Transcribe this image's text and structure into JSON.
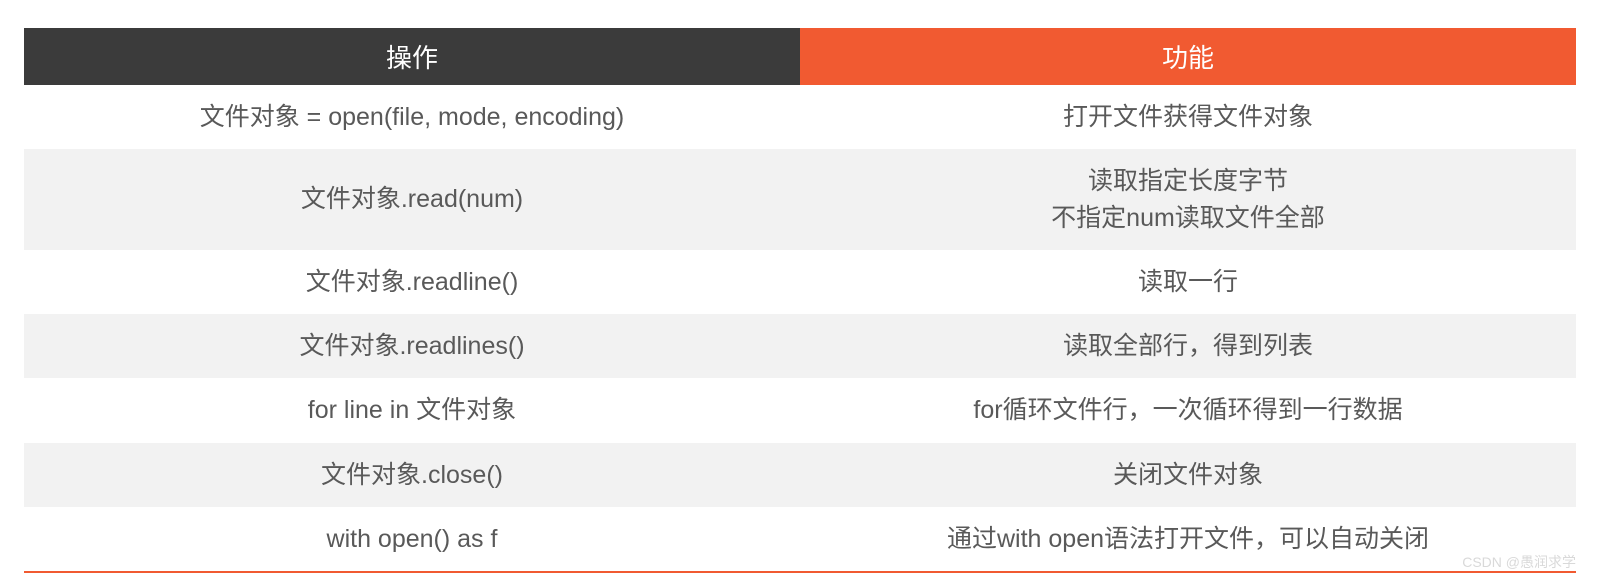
{
  "table": {
    "header_bg_left": "#3b3b3b",
    "header_bg_right": "#f15a31",
    "header_text_color": "#ffffff",
    "row_white_bg": "#ffffff",
    "row_gray_bg": "#f2f2f2",
    "cell_text_color": "#595959",
    "border_bottom_color": "#f15a31",
    "header_fontsize": 26,
    "cell_fontsize": 25,
    "columns": [
      "操作",
      "功能"
    ],
    "rows": [
      {
        "op": "文件对象 = open(file, mode, encoding)",
        "desc": "打开文件获得文件对象",
        "bg": "white"
      },
      {
        "op": "文件对象.read(num)",
        "desc": "读取指定长度字节\n不指定num读取文件全部",
        "bg": "gray"
      },
      {
        "op": "文件对象.readline()",
        "desc": "读取一行",
        "bg": "white"
      },
      {
        "op": "文件对象.readlines()",
        "desc": "读取全部行，得到列表",
        "bg": "gray"
      },
      {
        "op": "for line in 文件对象",
        "desc": "for循环文件行，一次循环得到一行数据",
        "bg": "white"
      },
      {
        "op": "文件对象.close()",
        "desc": "关闭文件对象",
        "bg": "gray"
      },
      {
        "op": "with open() as f",
        "desc": "通过with open语法打开文件，可以自动关闭",
        "bg": "white"
      }
    ]
  },
  "watermark": "CSDN @愚润求学"
}
